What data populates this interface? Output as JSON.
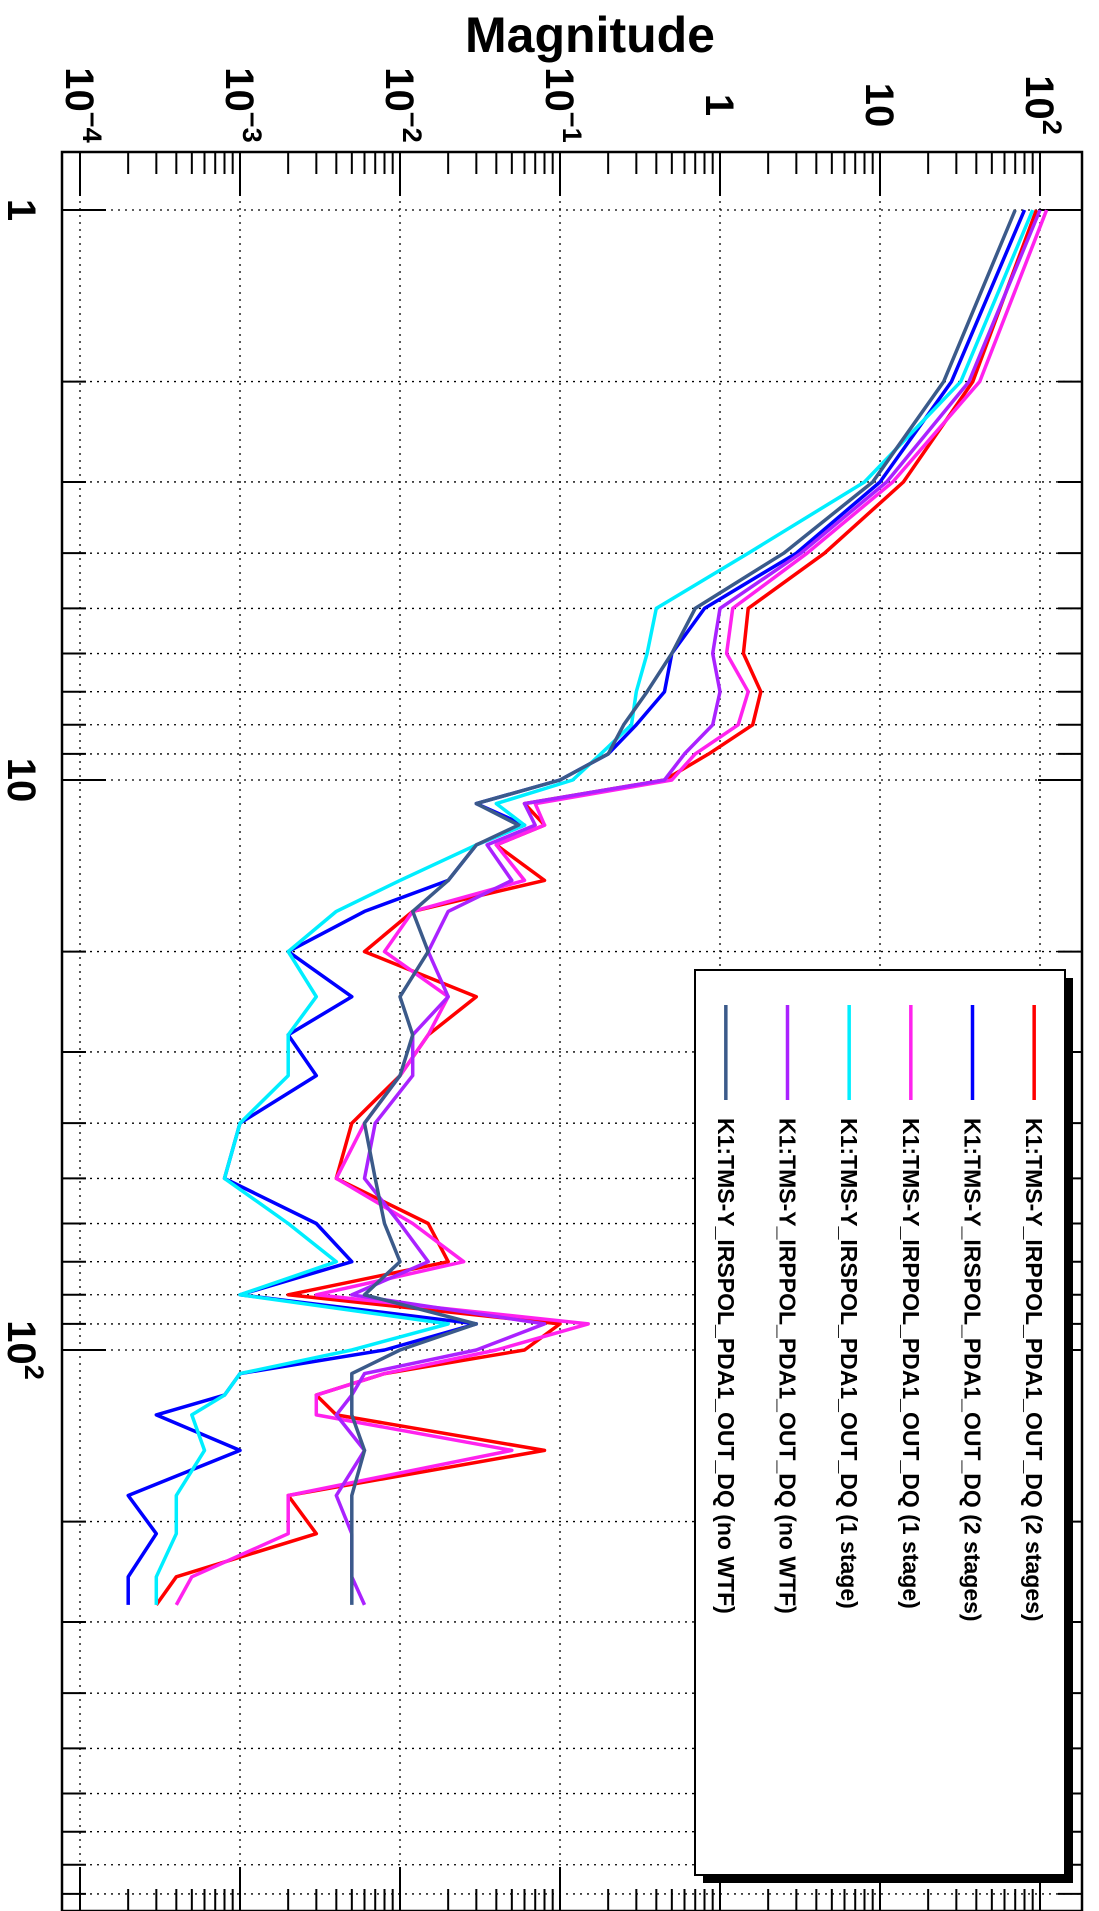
{
  "chart_data": {
    "type": "line",
    "orientation": "rotated 90 degrees clockwise",
    "ylabel": "Magnitude",
    "xlabel": "",
    "xscale": "log",
    "yscale": "log",
    "xlim": [
      1,
      280
    ],
    "ylim": [
      0.0001,
      130
    ],
    "grid": true,
    "legend_position": "top-right",
    "x_tick_labels": [
      {
        "value": 1,
        "base": "1",
        "exp": ""
      },
      {
        "value": 10,
        "base": "10",
        "exp": ""
      },
      {
        "value": 100,
        "base": "10",
        "exp": "2"
      }
    ],
    "y_tick_labels": [
      {
        "value": 0.0001,
        "base": "10",
        "exp": "−4"
      },
      {
        "value": 0.001,
        "base": "10",
        "exp": "−3"
      },
      {
        "value": 0.01,
        "base": "10",
        "exp": "−2"
      },
      {
        "value": 0.1,
        "base": "10",
        "exp": "−1"
      },
      {
        "value": 1,
        "base": "1",
        "exp": ""
      },
      {
        "value": 10,
        "base": "10",
        "exp": ""
      },
      {
        "value": 100,
        "base": "10",
        "exp": "2"
      }
    ],
    "x": [
      1,
      2,
      3,
      4,
      5,
      6,
      7,
      8,
      9,
      10,
      11,
      12,
      13,
      15,
      17,
      20,
      24,
      28,
      33,
      40,
      50,
      60,
      70,
      80,
      90,
      100,
      110,
      120,
      130,
      150,
      180,
      210,
      250,
      280
    ],
    "series": [
      {
        "name": "K1:TMS-Y_IRPPOL_PDA1_OUT_DQ (2 stages)",
        "color": "#ff0000",
        "values": [
          95,
          38,
          14,
          4.5,
          1.5,
          1.4,
          1.8,
          1.6,
          0.85,
          0.45,
          0.06,
          0.08,
          0.04,
          0.08,
          0.012,
          0.006,
          0.03,
          0.015,
          0.01,
          0.005,
          0.004,
          0.015,
          0.02,
          0.002,
          0.1,
          0.06,
          0.008,
          0.003,
          0.004,
          0.08,
          0.002,
          0.003,
          0.0004,
          0.0003
        ]
      },
      {
        "name": "K1:TMS-Y_IRSPOL_PDA1_OUT_DQ (2 stages)",
        "color": "#0000ff",
        "values": [
          80,
          28,
          10,
          3,
          0.8,
          0.5,
          0.45,
          0.3,
          0.2,
          0.1,
          0.03,
          0.06,
          0.03,
          0.02,
          0.006,
          0.002,
          0.005,
          0.002,
          0.003,
          0.001,
          0.0008,
          0.003,
          0.005,
          0.001,
          0.03,
          0.008,
          0.001,
          0.0008,
          0.0003,
          0.001,
          0.0002,
          0.0003,
          0.0002,
          0.0002
        ]
      },
      {
        "name": "K1:TMS-Y_IRPPOL_PDA1_OUT_DQ (1 stage)",
        "color": "#ff22ee",
        "values": [
          110,
          42,
          12,
          3.5,
          1.2,
          1.1,
          1.5,
          1.3,
          0.7,
          0.5,
          0.07,
          0.08,
          0.04,
          0.06,
          0.012,
          0.008,
          0.02,
          0.015,
          0.01,
          0.006,
          0.004,
          0.012,
          0.025,
          0.003,
          0.15,
          0.04,
          0.008,
          0.003,
          0.003,
          0.05,
          0.002,
          0.002,
          0.0005,
          0.0004
        ]
      },
      {
        "name": "K1:TMS-Y_IRSPOL_PDA1_OUT_DQ (1 stage)",
        "color": "#00eeff",
        "values": [
          90,
          32,
          8,
          1.5,
          0.4,
          0.35,
          0.3,
          0.28,
          0.18,
          0.12,
          0.04,
          0.06,
          0.03,
          0.01,
          0.004,
          0.002,
          0.003,
          0.002,
          0.002,
          0.001,
          0.0008,
          0.002,
          0.004,
          0.001,
          0.02,
          0.005,
          0.001,
          0.0008,
          0.0005,
          0.0006,
          0.0004,
          0.0004,
          0.0003,
          0.0003
        ]
      },
      {
        "name": "K1:TMS-Y_IRPPOL_PDA1_OUT_DQ (no WTF)",
        "color": "#aa22ff",
        "values": [
          100,
          36,
          11,
          3.2,
          1.0,
          0.9,
          1.0,
          0.9,
          0.6,
          0.45,
          0.06,
          0.07,
          0.035,
          0.05,
          0.02,
          0.015,
          0.02,
          0.012,
          0.012,
          0.007,
          0.006,
          0.01,
          0.015,
          0.005,
          0.08,
          0.03,
          0.006,
          0.005,
          0.004,
          0.006,
          0.004,
          0.005,
          0.005,
          0.006
        ]
      },
      {
        "name": "K1:TMS-Y_IRSPOL_PDA1_OUT_DQ (no WTF)",
        "color": "#3b5a8a",
        "values": [
          70,
          25,
          9,
          2.5,
          0.7,
          0.5,
          0.35,
          0.25,
          0.2,
          0.1,
          0.03,
          0.055,
          0.03,
          0.02,
          0.012,
          0.015,
          0.01,
          0.012,
          0.01,
          0.006,
          0.007,
          0.008,
          0.01,
          0.006,
          0.03,
          0.01,
          0.005,
          0.005,
          0.005,
          0.006,
          0.005,
          0.005,
          0.005,
          0.005
        ]
      }
    ]
  }
}
